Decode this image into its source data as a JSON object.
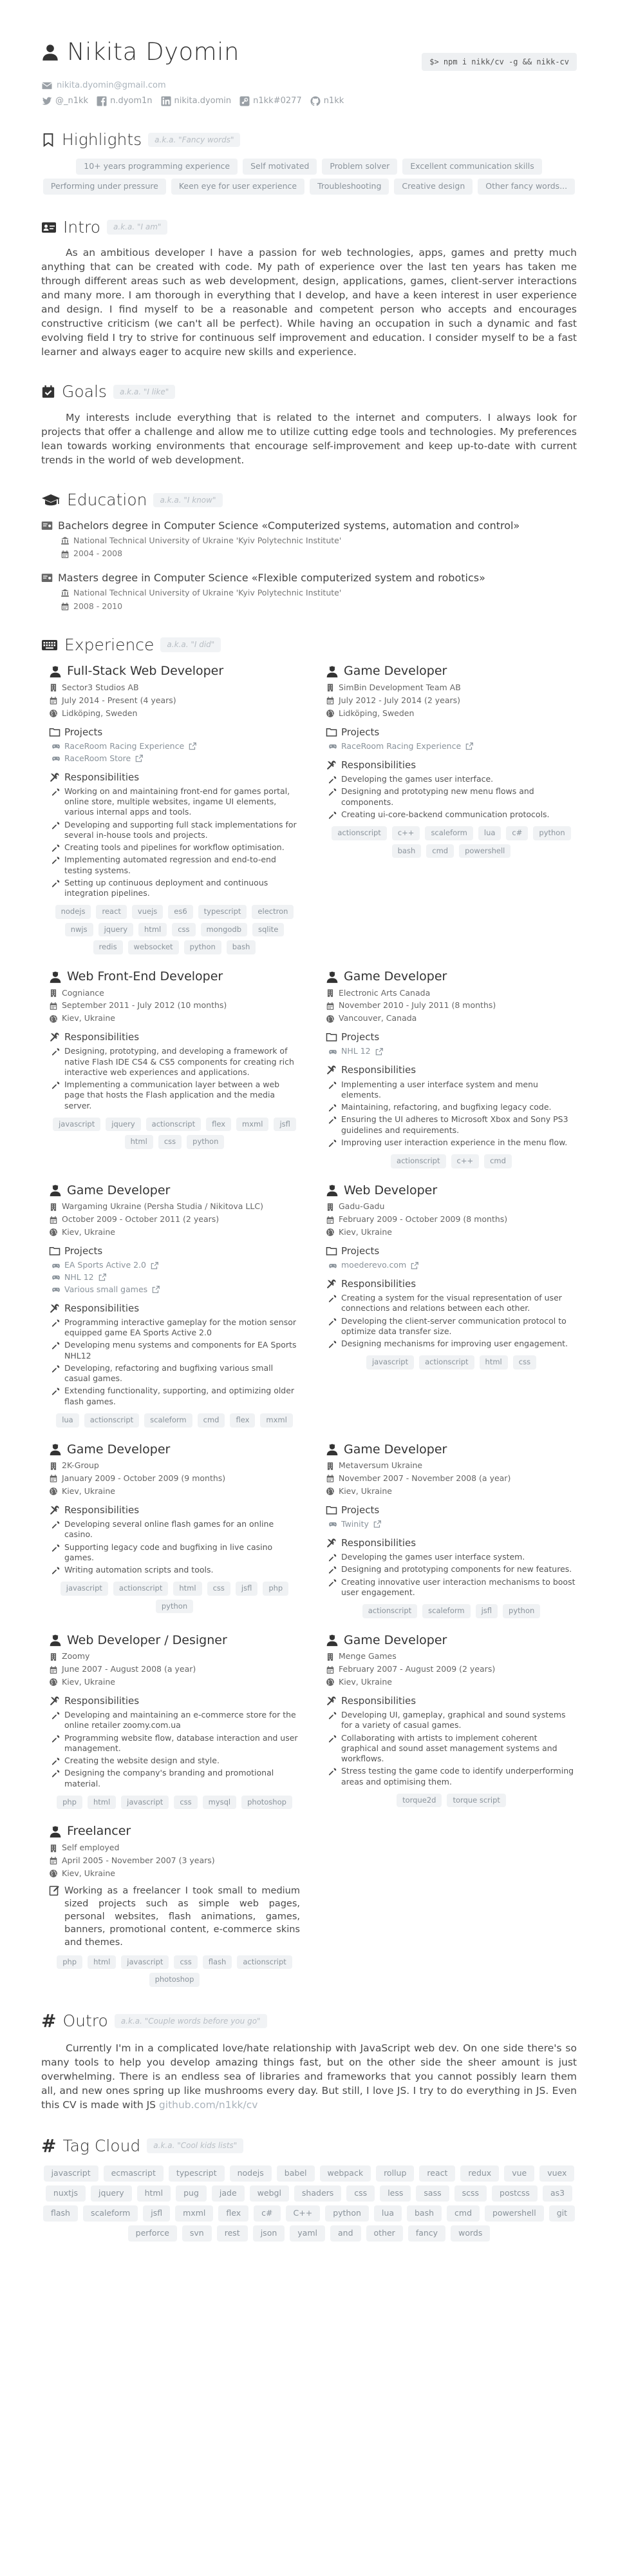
{
  "header": {
    "name": "Nikita Dyomin",
    "command": "$> npm i nikk/cv -g && nikk-cv",
    "email": "nikita.dyomin@gmail.com",
    "social": [
      {
        "icon": "twitter-icon",
        "label": "@_n1kk"
      },
      {
        "icon": "facebook-icon",
        "label": "n.dyom1n"
      },
      {
        "icon": "linkedin-icon",
        "label": "nikita.dyomin"
      },
      {
        "icon": "steam-icon",
        "label": "n1kk#0277"
      },
      {
        "icon": "github-icon",
        "label": "n1kk"
      }
    ]
  },
  "highlights": {
    "title": "Highlights",
    "aka": "a.k.a. \"Fancy words\"",
    "tags": [
      "10+ years programming experience",
      "Self motivated",
      "Problem solver",
      "Excellent communication skills",
      "Performing under pressure",
      "Keen eye for user experience",
      "Troubleshooting",
      "Creative design",
      "Other fancy words..."
    ]
  },
  "intro": {
    "title": "Intro",
    "aka": "a.k.a. \"I am\"",
    "text": "As an ambitious developer I have a passion for web technologies, apps, games and pretty much anything that can be created with code. My path of experience over the last ten years has taken me through different areas such as web development, design, applications, games, client-server interactions and many more. I am thorough in everything that I develop, and have a keen interest in user experience and design. I find myself to be a reasonable and competent person who accepts and encourages constructive criticism (we can't all be perfect). While having an occupation in such a dynamic and fast evolving field I try to strive for continuous self improvement and education. I consider myself to be a fast learner and always eager to acquire new skills and experience."
  },
  "goals": {
    "title": "Goals",
    "aka": "a.k.a. \"I like\"",
    "text": "My interests include everything that is related to the internet and computers. I always look for projects that offer a challenge and allow me to utilize cutting edge tools and technologies. My preferences lean towards working environments that encourage self-improvement and keep up-to-date with current trends in the world of web development."
  },
  "education": {
    "title": "Education",
    "aka": "a.k.a. \"I know\"",
    "items": [
      {
        "degree": "Bachelors degree in Computer Science «Computerized systems, automation and control»",
        "school": "National Technical University of Ukraine 'Kyiv Polytechnic Institute'",
        "years": "2004 - 2008"
      },
      {
        "degree": "Masters degree in Computer Science «Flexible computerized system and robotics»",
        "school": "National Technical University of Ukraine 'Kyiv Polytechnic Institute'",
        "years": "2008 - 2010"
      }
    ]
  },
  "experience": {
    "title": "Experience",
    "aka": "a.k.a. \"I did\"",
    "labels": {
      "projects": "Projects",
      "responsibilities": "Responsibilities"
    },
    "jobs": [
      {
        "title": "Full-Stack Web Developer",
        "company": "Sector3 Studios AB",
        "period": "July 2014 - Present (4 years)",
        "location": "Lidköping, Sweden",
        "projects": [
          "RaceRoom Racing Experience",
          "RaceRoom Store"
        ],
        "responsibilities": [
          "Working on and maintaining front-end for games portal, online store, multiple websites, ingame UI elements, various internal apps and tools.",
          "Developing and supporting full stack implementations for several in-house tools and projects.",
          "Creating tools and pipelines for workflow optimisation.",
          "Implementing automated regression and end-to-end testing systems.",
          "Setting up continuous deployment and continuous integration pipelines."
        ],
        "tags": [
          "nodejs",
          "react",
          "vuejs",
          "es6",
          "typescript",
          "electron",
          "nwjs",
          "jquery",
          "html",
          "css",
          "mongodb",
          "sqlite",
          "redis",
          "websocket",
          "python",
          "bash"
        ]
      },
      {
        "title": "Game Developer",
        "company": "SimBin Development Team AB",
        "period": "July 2012 - July 2014 (2 years)",
        "location": "Lidköping, Sweden",
        "projects": [
          "RaceRoom Racing Experience"
        ],
        "responsibilities": [
          "Developing the games user interface.",
          "Designing and prototyping new menu flows and components.",
          "Creating ui-core-backend communication protocols."
        ],
        "tags": [
          "actionscript",
          "c++",
          "scaleform",
          "lua",
          "c#",
          "python",
          "bash",
          "cmd",
          "powershell"
        ]
      },
      {
        "title": "Web Front-End Developer",
        "company": "Cogniance",
        "period": "September 2011 - July 2012 (10 months)",
        "location": "Kiev, Ukraine",
        "projects": [],
        "responsibilities": [
          "Designing, prototyping, and developing a framework of native Flash IDE CS4 & CS5 components for creating rich interactive web experiences and applications.",
          "Implementing a communication layer between a web page that hosts the Flash application and the media server."
        ],
        "tags": [
          "javascript",
          "jquery",
          "actionscript",
          "flex",
          "mxml",
          "jsfl",
          "html",
          "css",
          "python"
        ]
      },
      {
        "title": "Game Developer",
        "company": "Electronic Arts Canada",
        "period": "November 2010 - July 2011 (8 months)",
        "location": "Vancouver, Canada",
        "projects": [
          "NHL 12"
        ],
        "responsibilities": [
          "Implementing a user interface system and menu elements.",
          "Maintaining, refactoring, and bugfixing legacy code.",
          "Ensuring the UI adheres to Microsoft Xbox and Sony PS3 guidelines and requirements.",
          "Improving user interaction experience in the menu flow."
        ],
        "tags": [
          "actionscript",
          "c++",
          "cmd"
        ]
      },
      {
        "title": "Game Developer",
        "company": "Wargaming Ukraine (Persha Studia / Nikitova LLC)",
        "period": "October 2009 - October 2011 (2 years)",
        "location": "Kiev, Ukraine",
        "projects": [
          "EA Sports Active 2.0",
          "NHL 12",
          "Various small games"
        ],
        "responsibilities": [
          "Programming interactive gameplay for the motion sensor equipped game EA Sports Active 2.0",
          "Developing menu systems and components for EA Sports NHL12",
          "Developing, refactoring and bugfixing various small casual games.",
          "Extending functionality, supporting, and optimizing older flash games."
        ],
        "tags": [
          "lua",
          "actionscript",
          "scaleform",
          "cmd",
          "flex",
          "mxml"
        ]
      },
      {
        "title": "Web Developer",
        "company": "Gadu-Gadu",
        "period": "February 2009 - October 2009 (8 months)",
        "location": "Kiev, Ukraine",
        "projects": [
          "moederevo.com"
        ],
        "responsibilities": [
          "Creating a system for the visual representation of user connections and relations between each other.",
          "Developing the client-server communication protocol to optimize data transfer size.",
          "Designing mechanisms for improving user engagement."
        ],
        "tags": [
          "javascript",
          "actionscript",
          "html",
          "css"
        ]
      },
      {
        "title": "Game Developer",
        "company": "2K-Group",
        "period": "January 2009 - October 2009 (9 months)",
        "location": "Kiev, Ukraine",
        "projects": [],
        "responsibilities": [
          "Developing several online flash games for an online casino.",
          "Supporting legacy code and bugfixing in live casino games.",
          "Writing automation scripts and tools."
        ],
        "tags": [
          "javascript",
          "actionscript",
          "html",
          "css",
          "jsfl",
          "php",
          "python"
        ]
      },
      {
        "title": "Game Developer",
        "company": "Metaversum Ukraine",
        "period": "November 2007 - November 2008 (a year)",
        "location": "Kiev, Ukraine",
        "projects": [
          "Twinity"
        ],
        "responsibilities": [
          "Developing the games user interface system.",
          "Designing and prototyping components for new features.",
          "Creating innovative user interaction mechanisms to boost user engagement."
        ],
        "tags": [
          "actionscript",
          "scaleform",
          "jsfl",
          "python"
        ]
      },
      {
        "title": "Web Developer / Designer",
        "company": "Zoomy",
        "period": "June 2007 - August 2008 (a year)",
        "location": "Kiev, Ukraine",
        "projects": [],
        "responsibilities": [
          "Developing and maintaining an e-commerce store for the online retailer zoomy.com.ua",
          "Programming website flow, database interaction and user management.",
          "Creating the website design and style.",
          "Designing the company's branding and promotional material."
        ],
        "tags": [
          "php",
          "html",
          "javascript",
          "css",
          "mysql",
          "photoshop"
        ]
      },
      {
        "title": "Game Developer",
        "company": "Menge Games",
        "period": "February 2007 - August 2009 (2 years)",
        "location": "Kiev, Ukraine",
        "projects": [],
        "responsibilities": [
          "Developing UI, gameplay, graphical and sound systems for a variety of casual games.",
          "Collaborating with artists to implement coherent graphical and sound asset management systems and workflows.",
          "Stress testing the game code to identify underperforming areas and optimising them."
        ],
        "tags": [
          "torque2d",
          "torque script"
        ]
      },
      {
        "title": "Freelancer",
        "company": "Self employed",
        "period": "April 2005 - November 2007 (3 years)",
        "location": "Kiev, Ukraine",
        "projects": [],
        "description": "Working as a freelancer I took small to medium sized projects such as simple web pages, personal websites, flash animations, games, banners, promotional content, e-commerce skins and themes.",
        "responsibilities": [],
        "tags": [
          "php",
          "html",
          "javascript",
          "css",
          "flash",
          "actionscript",
          "photoshop"
        ]
      }
    ]
  },
  "outro": {
    "title": "Outro",
    "aka": "a.k.a. \"Couple words before you go\"",
    "text": "Currently I'm in a complicated love/hate relationship with JavaScript web dev. On one side there's so many tools to help you develop amazing things fast, but on the other side the sheer amount is just overwhelming. There is an endless sea of libraries and frameworks that you cannot possibly learn them all, and new ones spring up like mushrooms every day. But still, I love JS. I try to do everything in JS. Even this CV is made with JS ",
    "link": "github.com/n1kk/cv"
  },
  "tagcloud": {
    "title": "Tag Cloud",
    "aka": "a.k.a. \"Cool kids lists\"",
    "tags": [
      "javascript",
      "ecmascript",
      "typescript",
      "nodejs",
      "babel",
      "webpack",
      "rollup",
      "react",
      "redux",
      "vue",
      "vuex",
      "nuxtjs",
      "jquery",
      "html",
      "pug",
      "jade",
      "webgl",
      "shaders",
      "css",
      "less",
      "sass",
      "scss",
      "postcss",
      "as3",
      "flash",
      "scaleform",
      "jsfl",
      "mxml",
      "flex",
      "c#",
      "C++",
      "python",
      "lua",
      "bash",
      "cmd",
      "powershell",
      "git",
      "perforce",
      "svn",
      "rest",
      "json",
      "yaml",
      "and",
      "other",
      "fancy",
      "words"
    ]
  }
}
